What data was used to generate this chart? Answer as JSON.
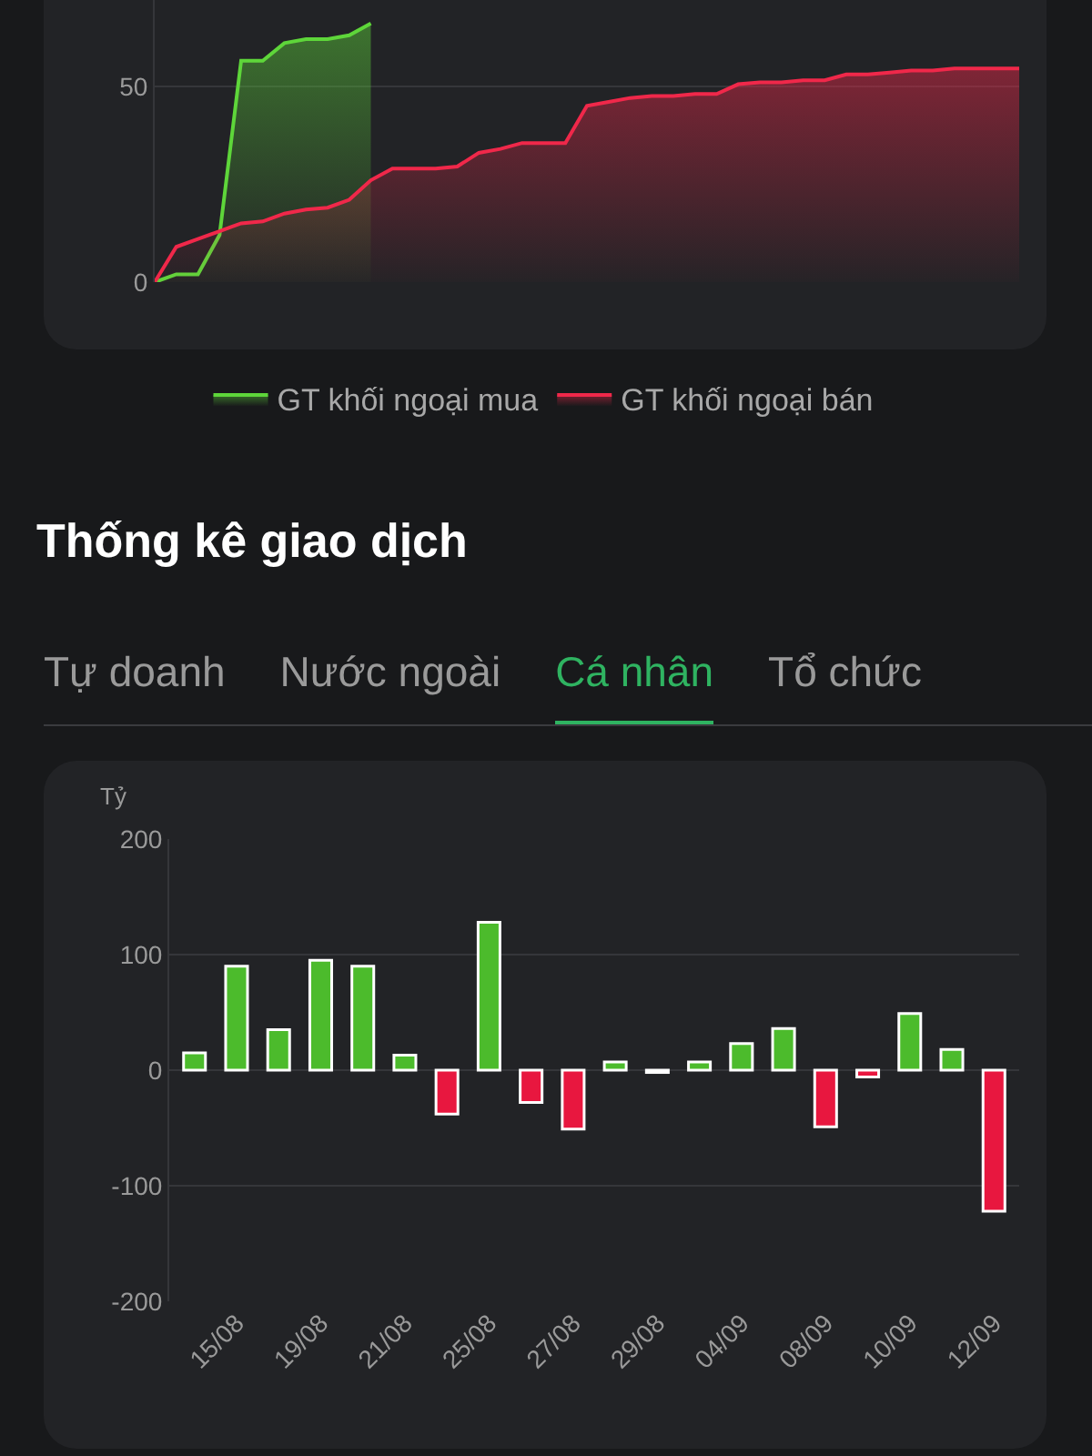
{
  "chart_data": [
    {
      "type": "area",
      "categories": [
        null,
        null,
        null,
        null,
        null,
        null,
        null,
        null,
        null,
        null,
        null,
        null,
        null,
        null,
        null,
        null,
        null,
        null,
        null,
        null,
        null,
        null,
        null,
        null,
        null,
        null,
        null,
        null,
        null,
        null,
        null,
        null,
        null,
        null,
        null,
        null,
        null,
        null,
        null,
        null,
        null
      ],
      "series": [
        {
          "name": "GT khối ngoại mua",
          "color": "#5ed63a",
          "values": [
            0,
            2,
            2,
            12,
            56.5,
            56.5,
            61,
            62,
            62,
            63,
            66,
            null,
            null,
            null,
            null,
            null,
            null,
            null,
            null,
            null,
            null,
            null,
            null,
            null,
            null,
            null,
            null,
            null,
            null,
            null,
            null,
            null,
            null,
            null,
            null,
            null,
            null,
            null,
            null,
            null,
            null
          ]
        },
        {
          "name": "GT khối ngoại bán",
          "color": "#f0284a",
          "values": [
            0,
            9,
            11,
            13,
            15,
            15.5,
            17.5,
            18.5,
            19,
            21,
            26,
            29,
            29,
            29,
            29.5,
            33,
            34,
            35.5,
            35.5,
            35.5,
            45,
            46,
            47,
            47.5,
            47.5,
            48,
            48,
            50.5,
            51,
            51,
            51.5,
            51.5,
            53,
            53,
            53.5,
            54,
            54,
            54.5,
            54.5,
            54.5,
            54.5
          ]
        }
      ],
      "ylim": [
        0,
        72
      ],
      "yticks": [
        0,
        50
      ],
      "grid": "y",
      "legend": "bottom",
      "tick_labels": "y"
    },
    {
      "type": "bar",
      "title": "Thống kê giao dịch",
      "ylabel": "Tỷ",
      "annotations": [
        "Tự doanh",
        "Nước ngoài",
        "Cá nhân",
        "Tổ chức"
      ],
      "categories": [
        null,
        "15/08",
        null,
        "19/08",
        null,
        "21/08",
        null,
        "25/08",
        null,
        "27/08",
        null,
        "29/08",
        null,
        "04/09",
        null,
        "08/09",
        null,
        "10/09",
        null,
        "12/09"
      ],
      "values": [
        15,
        90,
        35,
        95,
        90,
        13,
        -38,
        128,
        -28,
        -51,
        7,
        -2,
        7,
        23,
        36,
        -49,
        -6,
        49,
        18,
        -122
      ],
      "colors": [
        "#4cbb2c",
        "#4cbb2c",
        "#4cbb2c",
        "#4cbb2c",
        "#4cbb2c",
        "#4cbb2c",
        "#e8173f",
        "#4cbb2c",
        "#e8173f",
        "#e8173f",
        "#4cbb2c",
        "#f2f2f2",
        "#4cbb2c",
        "#4cbb2c",
        "#4cbb2c",
        "#e8173f",
        "#e8173f",
        "#4cbb2c",
        "#4cbb2c",
        "#e8173f"
      ],
      "ylim": [
        -200,
        200
      ],
      "yticks": [
        -200,
        -100,
        0,
        100,
        200
      ],
      "grid": "y"
    }
  ]
}
